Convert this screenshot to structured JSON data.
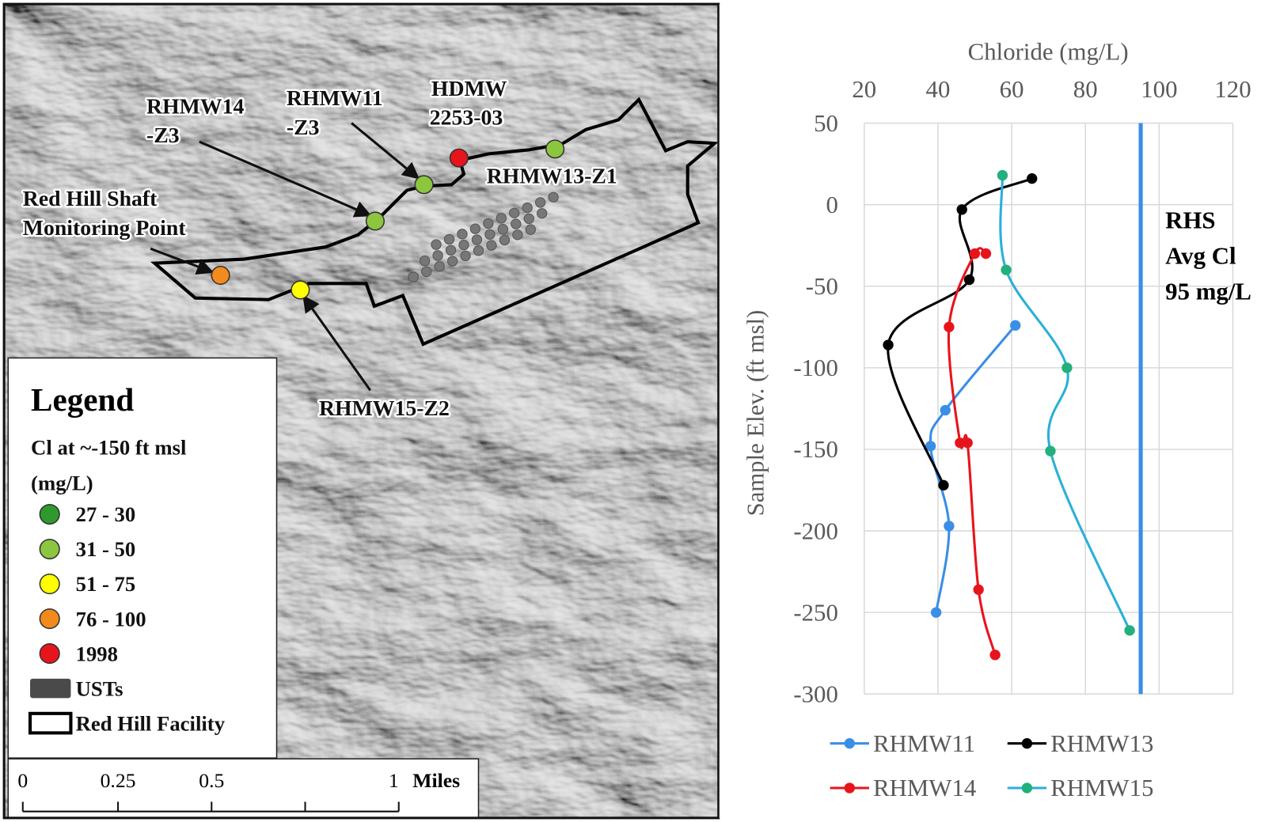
{
  "map": {
    "labels": [
      {
        "lines": [
          "RHMW14",
          "-Z3"
        ]
      },
      {
        "lines": [
          "RHMW11",
          "-Z3"
        ]
      },
      {
        "lines": [
          "HDMW",
          "2253-03"
        ]
      },
      {
        "lines": [
          "RHMW13-Z1"
        ]
      },
      {
        "lines": [
          "Red Hill Shaft",
          "Monitoring Point"
        ]
      },
      {
        "lines": [
          "RHMW15-Z2"
        ]
      }
    ],
    "legend": {
      "title": "Legend",
      "subtitle": "Cl at ~-150 ft msl",
      "units": "(mg/L)",
      "items": [
        {
          "label": "27 - 30",
          "color": "#2e9a2e"
        },
        {
          "label": "31 - 50",
          "color": "#8cc63f"
        },
        {
          "label": "51 - 75",
          "color": "#ffff00"
        },
        {
          "label": "76 - 100",
          "color": "#f28a1d"
        },
        {
          "label": "1998",
          "color": "#e8141c"
        },
        {
          "label": "USTs",
          "color": "#4a4a4a"
        },
        {
          "label": "Red Hill Facility",
          "color": "#ffffff"
        }
      ]
    },
    "scale_bar": {
      "ticks": [
        "0",
        "0.25",
        "0.5",
        "1"
      ],
      "unit": "Miles"
    }
  },
  "chart_data": {
    "type": "scatter-line",
    "x_label": "Chloride (mg/L)",
    "y_label": "Sample Elev. (ft msl)",
    "xlim": [
      20,
      120
    ],
    "xticks": [
      20,
      40,
      60,
      80,
      100,
      120
    ],
    "ylim": [
      -300,
      50
    ],
    "yticks": [
      -300,
      -250,
      -200,
      -150,
      -100,
      -50,
      0,
      50
    ],
    "grid": true,
    "series": [
      {
        "name": "RHMW11",
        "color": "#3a8ee6",
        "x": [
          61,
          42,
          38,
          43,
          39.5
        ],
        "values": [
          -74,
          -126,
          -148,
          -197,
          -250
        ]
      },
      {
        "name": "RHMW13",
        "color": "#000000",
        "x": [
          65.5,
          46.5,
          48.5,
          26.5,
          41.5
        ],
        "values": [
          16,
          -3,
          -46,
          -86,
          -172
        ]
      },
      {
        "name": "RHMW14",
        "color": "#e8141c",
        "x": [
          53,
          50,
          43,
          46,
          48,
          51,
          55.5
        ],
        "values": [
          -30,
          -30,
          -75,
          -146,
          -146,
          -236,
          -276
        ]
      },
      {
        "name": "RHMW15",
        "color": "#22b07d",
        "line_color": "#2ab0d8",
        "x": [
          57.5,
          58.5,
          75,
          70.5,
          92
        ],
        "values": [
          18,
          -40,
          -100,
          -151,
          -261
        ]
      }
    ],
    "reference_line": {
      "value": 95,
      "color": "#3a8ee6",
      "label_lines": [
        "RHS",
        "Avg Cl",
        "95 mg/L"
      ]
    }
  }
}
